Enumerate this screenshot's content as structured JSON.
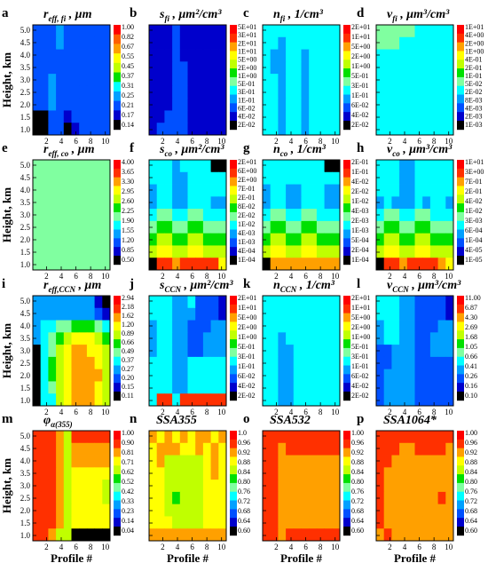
{
  "chart_data": [
    {
      "type": "heatmap",
      "label": "a",
      "title_main": "r",
      "title_sub": "eff, fi",
      "title_unit": " , μm",
      "colorbar": [
        "1.00",
        "0.82",
        "0.67",
        "0.55",
        "0.45",
        "0.37",
        "0.31",
        "0.25",
        "0.21",
        "0.17",
        "0.14"
      ]
    },
    {
      "type": "heatmap",
      "label": "b",
      "title_main": "s",
      "title_sub": "fi",
      "title_unit": " , μm²/cm³",
      "colorbar": [
        "5E+01",
        "3E+01",
        "2E+01",
        "1E+01",
        "5E+00",
        "2E+00",
        "1E+00",
        "5E-01",
        "3E-01",
        "1E-01",
        "6E-02",
        "4E-02",
        "2E-02"
      ]
    },
    {
      "type": "heatmap",
      "label": "c",
      "title_main": "n",
      "title_sub": "fi",
      "title_unit": " , 1/cm³",
      "colorbar": [
        "2E+01",
        "1E+01",
        "5E+00",
        "2E+00",
        "1E+00",
        "5E-01",
        "3E-01",
        "1E-01",
        "6E-02",
        "4E-02",
        "2E-02"
      ]
    },
    {
      "type": "heatmap",
      "label": "d",
      "title_main": "v",
      "title_sub": "fi",
      "title_unit": " ,  μm³/cm³",
      "colorbar": [
        "1E+01",
        "4E+00",
        "2E+00",
        "1E+00",
        "4E-01",
        "2E-01",
        "1E-01",
        "5E-02",
        "2E-02",
        "8E-03",
        "4E-03",
        "2E-03",
        "1E-03"
      ]
    },
    {
      "type": "heatmap",
      "label": "e",
      "title_main": "r",
      "title_sub": "eff, co",
      "title_unit": " , μm",
      "colorbar": [
        "4.00",
        "3.65",
        "3.30",
        "2.95",
        "2.60",
        "2.25",
        "1.90",
        "1.55",
        "1.20",
        "0.85",
        "0.50"
      ]
    },
    {
      "type": "heatmap",
      "label": "f",
      "title_main": "s",
      "title_sub": "co",
      "title_unit": " , μm²/cm³",
      "colorbar": [
        "2E+01",
        "6E+00",
        "2E+00",
        "7E-01",
        "2E-01",
        "8E-02",
        "2E-02",
        "1E-02",
        "4E-03",
        "1E-03",
        "4E-04",
        "1E-04"
      ]
    },
    {
      "type": "heatmap",
      "label": "g",
      "title_main": "n",
      "title_sub": "co",
      "title_unit": " , 1/cm³",
      "colorbar": [
        "2E-01",
        "1E-01",
        "4E-02",
        "2E-02",
        "1E-02",
        "4E-03",
        "2E-03",
        "1E-03",
        "5E-04",
        "2E-04",
        "1E-04"
      ]
    },
    {
      "type": "heatmap",
      "label": "h",
      "title_main": "v",
      "title_sub": "co",
      "title_unit": " , μm³/cm³",
      "colorbar": [
        "1E+01",
        "3E+00",
        "7E-01",
        "2E-01",
        "4E-02",
        "1E-02",
        "3E-03",
        "6E-04",
        "1E-04",
        "4E-05",
        "1E-05"
      ]
    },
    {
      "type": "heatmap",
      "label": "i",
      "title_main": "r",
      "title_sub": "eff,CCN",
      "title_unit": " , μm",
      "colorbar": [
        "2.94",
        "2.18",
        "1.62",
        "1.20",
        "0.89",
        "0.66",
        "0.49",
        "0.37",
        "0.27",
        "0.20",
        "0.15",
        "0.11"
      ]
    },
    {
      "type": "heatmap",
      "label": "j",
      "title_main": "s",
      "title_sub": "CCN",
      "title_unit": " , μm²/cm³",
      "colorbar": [
        "2E+01",
        "1E+01",
        "5E+00",
        "2E+00",
        "1E+00",
        "5E-01",
        "3E-01",
        "1E-01",
        "6E-02",
        "4E-02",
        "2E-02"
      ]
    },
    {
      "type": "heatmap",
      "label": "k",
      "title_main": "n",
      "title_sub": "CCN",
      "title_unit": " , 1/cm³",
      "colorbar": [
        "2E+01",
        "1E+01",
        "5E+00",
        "2E+00",
        "1E+00",
        "5E-01",
        "3E-01",
        "1E-01",
        "6E-02",
        "4E-02",
        "2E-02"
      ]
    },
    {
      "type": "heatmap",
      "label": "l",
      "title_main": "v",
      "title_sub": "CCN",
      "title_unit": " , μm³/cm³",
      "colorbar": [
        "11.00",
        "6.87",
        "4.30",
        "2.69",
        "1.68",
        "1.05",
        "0.66",
        "0.41",
        "0.26",
        "0.16",
        "0.10"
      ]
    },
    {
      "type": "heatmap",
      "label": "m",
      "title_main": "φ",
      "title_sub": "α(355)",
      "title_unit": "",
      "colorbar": [
        "1.00",
        "0.90",
        "0.81",
        "0.71",
        "0.62",
        "0.52",
        "0.42",
        "0.33",
        "0.23",
        "0.14",
        "0.04"
      ]
    },
    {
      "type": "heatmap",
      "label": "n",
      "title_main": "SSA355",
      "title_sub": "",
      "title_unit": "",
      "colorbar": [
        "1.0",
        "0.96",
        "0.92",
        "0.88",
        "0.84",
        "0.80",
        "0.76",
        "0.72",
        "0.68",
        "0.64",
        "0.60"
      ]
    },
    {
      "type": "heatmap",
      "label": "o",
      "title_main": "SSA532",
      "title_sub": "",
      "title_unit": "",
      "colorbar": [
        "1.00",
        "0.96",
        "0.92",
        "0.88",
        "0.84",
        "0.80",
        "0.76",
        "0.72",
        "0.68",
        "0.64",
        "0.60"
      ]
    },
    {
      "type": "heatmap",
      "label": "p",
      "title_main": "SSA1064*",
      "title_sub": "",
      "title_unit": "",
      "colorbar": [
        "1.00",
        "0.96",
        "0.92",
        "0.88",
        "0.84",
        "0.80",
        "0.76",
        "0.72",
        "0.68",
        "0.64",
        "0.60"
      ]
    }
  ],
  "axes": {
    "ylabel": "Height, km",
    "xlabel": "Profile #",
    "yticks": [
      "1.0",
      "1.5",
      "2.0",
      "2.5",
      "3.0",
      "3.5",
      "4.0",
      "4.5",
      "5.0"
    ],
    "xticks": [
      "2",
      "4",
      "6",
      "8",
      "10"
    ]
  },
  "palette": [
    "#000000",
    "#0000cc",
    "#0050ff",
    "#00a0ff",
    "#00ffff",
    "#80ffa0",
    "#00e000",
    "#c0ff00",
    "#ffff00",
    "#ffa000",
    "#ff3000",
    "#ff0000"
  ]
}
